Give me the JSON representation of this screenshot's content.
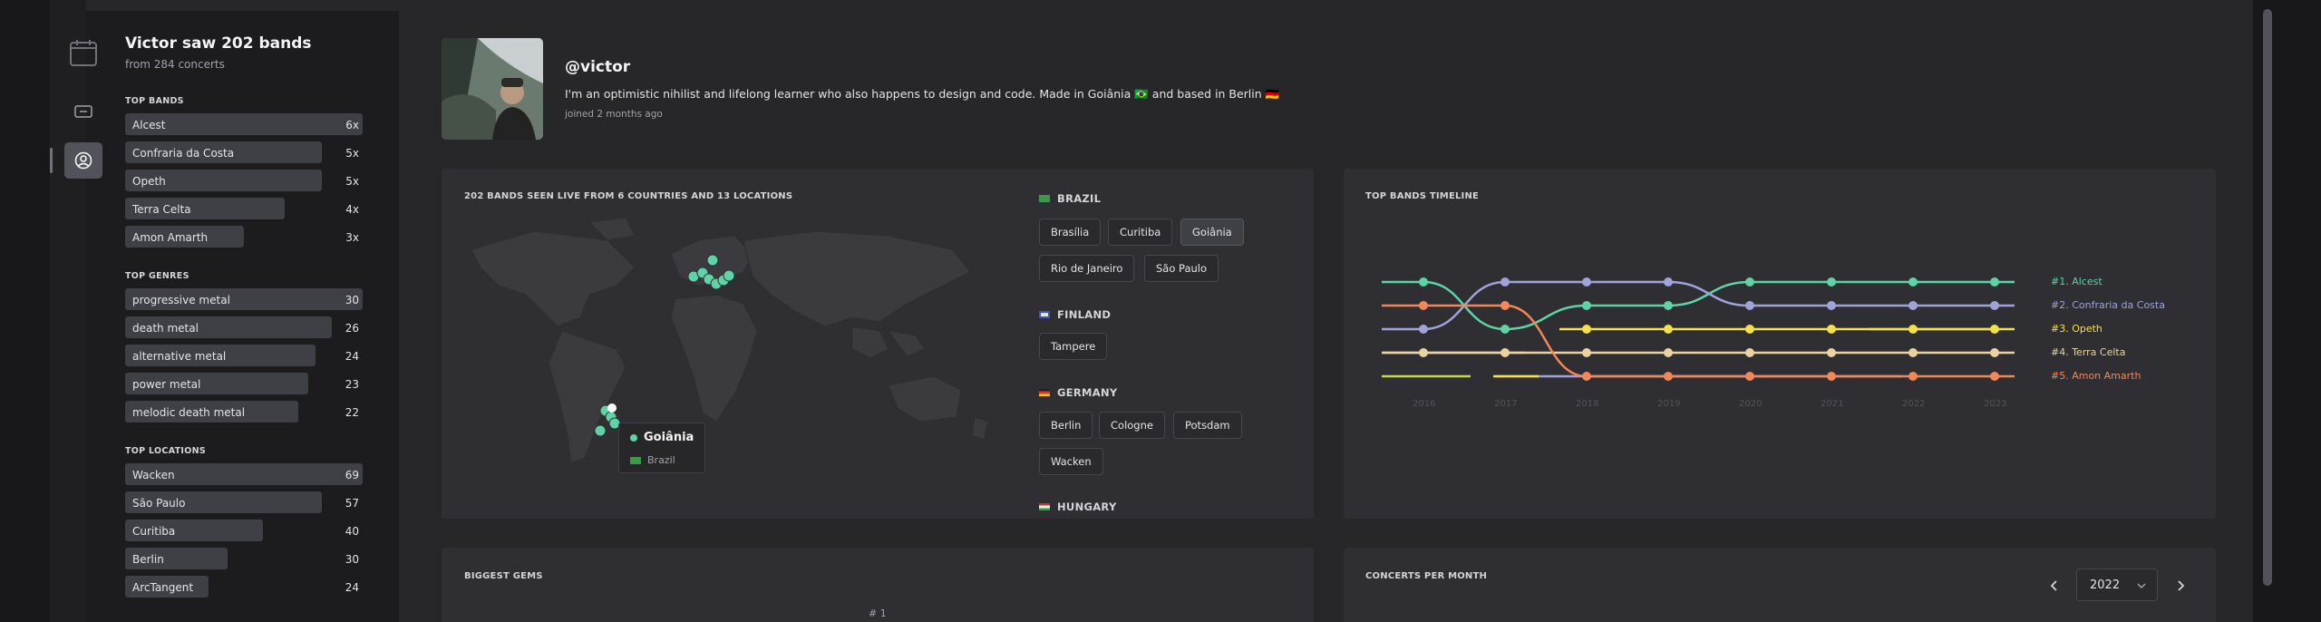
{
  "nav": {
    "icons": [
      "calendar-icon",
      "ticket-icon",
      "user-circle-icon"
    ]
  },
  "summary": {
    "title": "Victor saw 202 bands",
    "subtitle": "from 284 concerts"
  },
  "top_bands": {
    "heading": "TOP BANDS",
    "items": [
      {
        "label": "Alcest",
        "count": "6x",
        "fraction": 1.0
      },
      {
        "label": "Confraria da Costa",
        "count": "5x",
        "fraction": 0.83
      },
      {
        "label": "Opeth",
        "count": "5x",
        "fraction": 0.83
      },
      {
        "label": "Terra Celta",
        "count": "4x",
        "fraction": 0.67
      },
      {
        "label": "Amon Amarth",
        "count": "3x",
        "fraction": 0.5
      }
    ]
  },
  "top_genres": {
    "heading": "TOP GENRES",
    "items": [
      {
        "label": "progressive metal",
        "count": "30",
        "fraction": 1.0
      },
      {
        "label": "death metal",
        "count": "26",
        "fraction": 0.87
      },
      {
        "label": "alternative metal",
        "count": "24",
        "fraction": 0.8
      },
      {
        "label": "power metal",
        "count": "23",
        "fraction": 0.77
      },
      {
        "label": "melodic death metal",
        "count": "22",
        "fraction": 0.73
      }
    ]
  },
  "top_locations": {
    "heading": "TOP LOCATIONS",
    "items": [
      {
        "label": "Wacken",
        "count": "69",
        "fraction": 1.0
      },
      {
        "label": "São Paulo",
        "count": "57",
        "fraction": 0.83
      },
      {
        "label": "Curitiba",
        "count": "40",
        "fraction": 0.58
      },
      {
        "label": "Berlin",
        "count": "30",
        "fraction": 0.43
      },
      {
        "label": "ArcTangent",
        "count": "24",
        "fraction": 0.35
      }
    ]
  },
  "profile": {
    "handle": "@victor",
    "bio": "I'm an optimistic nihilist and lifelong learner who also happens to design and code. Made in Goiânia 🇧🇷 and based in Berlin 🇩🇪",
    "joined": "joined 2 months ago"
  },
  "map_card": {
    "heading": "202 BANDS SEEN LIVE FROM 6 COUNTRIES AND 13 LOCATIONS",
    "tooltip": {
      "city": "Goiânia",
      "country": "Brazil"
    },
    "countries": [
      {
        "name": "BRAZIL",
        "cities": [
          "Brasília",
          "Curitiba",
          "Goiânia",
          "Rio de Janeiro",
          "São Paulo"
        ],
        "selected": "Goiânia"
      },
      {
        "name": "FINLAND",
        "cities": [
          "Tampere"
        ]
      },
      {
        "name": "GERMANY",
        "cities": [
          "Berlin",
          "Cologne",
          "Potsdam",
          "Wacken"
        ]
      },
      {
        "name": "HUNGARY",
        "cities": []
      }
    ]
  },
  "timeline_card": {
    "heading": "TOP BANDS TIMELINE",
    "years": [
      "2016",
      "2017",
      "2018",
      "2019",
      "2020",
      "2021",
      "2022",
      "2023"
    ],
    "bands": [
      {
        "label": "#1. Alcest",
        "color": "#5fd3a6"
      },
      {
        "label": "#2. Confraria da Costa",
        "color": "#9fa3d9"
      },
      {
        "label": "#3. Opeth",
        "color": "#f5e04a"
      },
      {
        "label": "#4. Terra Celta",
        "color": "#e9d3a0"
      },
      {
        "label": "#5. Amon Amarth",
        "color": "#f2875a"
      }
    ]
  },
  "gems_card": {
    "heading": "BIGGEST GEMS",
    "rank_label": "# 1"
  },
  "month_card": {
    "heading": "CONCERTS PER MONTH",
    "year": "2022"
  }
}
